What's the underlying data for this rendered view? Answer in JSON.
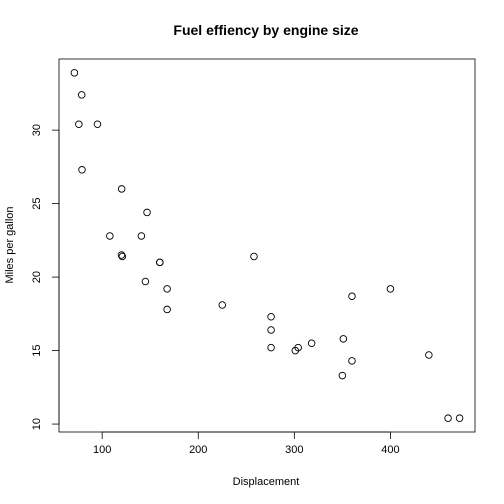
{
  "chart_data": {
    "type": "scatter",
    "title": "Fuel effiency by engine size",
    "xlabel": "Displacement",
    "ylabel": "Miles per gallon",
    "x_ticks": [
      100,
      200,
      300,
      400
    ],
    "y_ticks": [
      10,
      15,
      20,
      25,
      30
    ],
    "xlim": [
      71.1,
      472
    ],
    "ylim": [
      10.4,
      33.9
    ],
    "grid": false,
    "points": [
      {
        "x": 160,
        "y": 21.0
      },
      {
        "x": 160,
        "y": 21.0
      },
      {
        "x": 108,
        "y": 22.8
      },
      {
        "x": 258,
        "y": 21.4
      },
      {
        "x": 360,
        "y": 18.7
      },
      {
        "x": 225,
        "y": 18.1
      },
      {
        "x": 360,
        "y": 14.3
      },
      {
        "x": 146.7,
        "y": 24.4
      },
      {
        "x": 140.8,
        "y": 22.8
      },
      {
        "x": 167.6,
        "y": 19.2
      },
      {
        "x": 167.6,
        "y": 17.8
      },
      {
        "x": 275.8,
        "y": 16.4
      },
      {
        "x": 275.8,
        "y": 17.3
      },
      {
        "x": 275.8,
        "y": 15.2
      },
      {
        "x": 472,
        "y": 10.4
      },
      {
        "x": 460,
        "y": 10.4
      },
      {
        "x": 440,
        "y": 14.7
      },
      {
        "x": 78.7,
        "y": 32.4
      },
      {
        "x": 75.7,
        "y": 30.4
      },
      {
        "x": 71.1,
        "y": 33.9
      },
      {
        "x": 120.1,
        "y": 21.5
      },
      {
        "x": 318,
        "y": 15.5
      },
      {
        "x": 304,
        "y": 15.2
      },
      {
        "x": 350,
        "y": 13.3
      },
      {
        "x": 400,
        "y": 19.2
      },
      {
        "x": 79,
        "y": 27.3
      },
      {
        "x": 120.3,
        "y": 26.0
      },
      {
        "x": 95.1,
        "y": 30.4
      },
      {
        "x": 351,
        "y": 15.8
      },
      {
        "x": 145,
        "y": 19.7
      },
      {
        "x": 301,
        "y": 15.0
      },
      {
        "x": 121,
        "y": 21.4
      }
    ]
  }
}
